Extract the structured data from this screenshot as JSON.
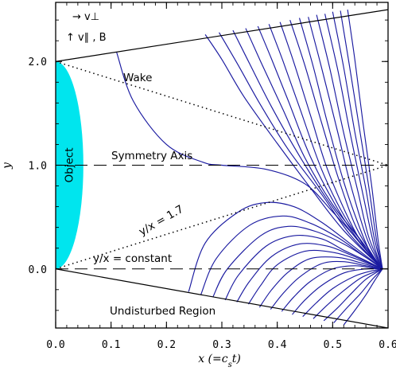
{
  "chart_data": {
    "type": "line",
    "xlabel": "x (=c_s t)",
    "ylabel": "y",
    "xlim": [
      0.0,
      0.6
    ],
    "ylim": [
      -0.57,
      2.57
    ],
    "x_ticks": [
      0.0,
      0.1,
      0.2,
      0.3,
      0.4,
      0.5,
      0.6
    ],
    "x_tick_labels": [
      "0.0",
      "0.1",
      "0.2",
      "0.3",
      "0.4",
      "0.5",
      "0.6"
    ],
    "y_ticks": [
      0.0,
      1.0,
      2.0
    ],
    "y_tick_labels": [
      "0.0",
      "1.0",
      "2.0"
    ],
    "grid": false,
    "legend": {
      "placement": "top-left",
      "line1": "→ v⊥",
      "line2": "↑ v∥ , B"
    },
    "object": {
      "label": "Object",
      "color": "#00e5ee",
      "y_range": [
        0.0,
        2.0
      ],
      "max_width_x": 0.05
    },
    "boundaries": [
      {
        "name": "upper-boundary",
        "style": "solid",
        "from": [
          0.0,
          2.0
        ],
        "to": [
          0.6,
          2.5
        ]
      },
      {
        "name": "lower-boundary",
        "style": "solid",
        "from": [
          0.0,
          0.0
        ],
        "to": [
          0.6,
          -0.57
        ]
      }
    ],
    "reference_lines": [
      {
        "name": "symmetry-axis",
        "style": "dashed",
        "from": [
          0.0,
          1.0
        ],
        "to": [
          0.6,
          1.0
        ]
      },
      {
        "name": "constant-ratio-line",
        "style": "dashed",
        "from": [
          0.0,
          0.0
        ],
        "to": [
          0.6,
          0.0
        ]
      },
      {
        "name": "wake-upper-line",
        "style": "dotted",
        "from": [
          0.0,
          2.0
        ],
        "to": [
          0.6,
          1.0
        ]
      },
      {
        "name": "ratio-1.7-line",
        "style": "dotted",
        "from": [
          0.0,
          0.0
        ],
        "to": [
          0.6,
          1.0
        ]
      }
    ],
    "annotations": [
      {
        "name": "wake-label",
        "text": "Wake"
      },
      {
        "name": "symmetry-axis-label",
        "text": "Symmetry Axis"
      },
      {
        "name": "ratio-1.7-label",
        "text": "y/x = 1.7"
      },
      {
        "name": "constant-ratio-label",
        "text": "y/x = constant"
      },
      {
        "name": "undisturbed-label",
        "text": "Undisturbed Region"
      }
    ],
    "line_color": "#1a1aa0",
    "convergence_point": [
      0.59,
      0.0
    ],
    "field_lines": [
      [
        [
          0.11,
          2.09
        ],
        [
          0.14,
          1.62
        ],
        [
          0.2,
          1.2
        ],
        [
          0.265,
          1.03
        ],
        [
          0.3,
          1.0
        ],
        [
          0.38,
          0.96
        ],
        [
          0.45,
          0.82
        ],
        [
          0.5,
          0.55
        ],
        [
          0.55,
          0.25
        ],
        [
          0.59,
          0.0
        ]
      ],
      [
        [
          0.24,
          -0.22
        ],
        [
          0.27,
          0.25
        ],
        [
          0.33,
          0.55
        ],
        [
          0.38,
          0.64
        ],
        [
          0.43,
          0.6
        ],
        [
          0.48,
          0.45
        ],
        [
          0.53,
          0.25
        ],
        [
          0.59,
          0.0
        ]
      ],
      [
        [
          0.262,
          -0.25
        ],
        [
          0.29,
          0.1
        ],
        [
          0.35,
          0.42
        ],
        [
          0.41,
          0.51
        ],
        [
          0.46,
          0.44
        ],
        [
          0.51,
          0.3
        ],
        [
          0.55,
          0.15
        ],
        [
          0.59,
          0.0
        ]
      ],
      [
        [
          0.284,
          -0.27
        ],
        [
          0.31,
          0.0
        ],
        [
          0.37,
          0.32
        ],
        [
          0.42,
          0.41
        ],
        [
          0.47,
          0.36
        ],
        [
          0.52,
          0.24
        ],
        [
          0.56,
          0.11
        ],
        [
          0.59,
          0.0
        ]
      ],
      [
        [
          0.306,
          -0.3
        ],
        [
          0.33,
          -0.06
        ],
        [
          0.38,
          0.22
        ],
        [
          0.43,
          0.32
        ],
        [
          0.48,
          0.29
        ],
        [
          0.52,
          0.18
        ],
        [
          0.56,
          0.08
        ],
        [
          0.59,
          0.0
        ]
      ],
      [
        [
          0.327,
          -0.32
        ],
        [
          0.35,
          -0.12
        ],
        [
          0.39,
          0.12
        ],
        [
          0.44,
          0.24
        ],
        [
          0.49,
          0.22
        ],
        [
          0.53,
          0.14
        ],
        [
          0.565,
          0.06
        ],
        [
          0.59,
          0.0
        ]
      ],
      [
        [
          0.348,
          -0.34
        ],
        [
          0.37,
          -0.16
        ],
        [
          0.4,
          0.04
        ],
        [
          0.45,
          0.17
        ],
        [
          0.5,
          0.16
        ],
        [
          0.54,
          0.1
        ],
        [
          0.57,
          0.04
        ],
        [
          0.59,
          0.0
        ]
      ],
      [
        [
          0.368,
          -0.37
        ],
        [
          0.39,
          -0.2
        ],
        [
          0.42,
          -0.03
        ],
        [
          0.46,
          0.1
        ],
        [
          0.51,
          0.11
        ],
        [
          0.55,
          0.06
        ],
        [
          0.575,
          0.02
        ],
        [
          0.59,
          0.0
        ]
      ],
      [
        [
          0.388,
          -0.39
        ],
        [
          0.41,
          -0.24
        ],
        [
          0.44,
          -0.08
        ],
        [
          0.48,
          0.05
        ],
        [
          0.52,
          0.07
        ],
        [
          0.56,
          0.03
        ],
        [
          0.59,
          0.0
        ]
      ],
      [
        [
          0.408,
          -0.41
        ],
        [
          0.43,
          -0.27
        ],
        [
          0.46,
          -0.12
        ],
        [
          0.5,
          0.0
        ],
        [
          0.54,
          0.03
        ],
        [
          0.57,
          0.01
        ],
        [
          0.59,
          0.0
        ]
      ],
      [
        [
          0.427,
          -0.44
        ],
        [
          0.45,
          -0.3
        ],
        [
          0.48,
          -0.16
        ],
        [
          0.52,
          -0.04
        ],
        [
          0.56,
          0.0
        ],
        [
          0.59,
          0.0
        ]
      ],
      [
        [
          0.446,
          -0.46
        ],
        [
          0.47,
          -0.33
        ],
        [
          0.5,
          -0.19
        ],
        [
          0.54,
          -0.07
        ],
        [
          0.57,
          -0.02
        ],
        [
          0.59,
          0.0
        ]
      ],
      [
        [
          0.465,
          -0.48
        ],
        [
          0.49,
          -0.35
        ],
        [
          0.52,
          -0.21
        ],
        [
          0.55,
          -0.09
        ],
        [
          0.575,
          -0.03
        ],
        [
          0.59,
          0.0
        ]
      ],
      [
        [
          0.484,
          -0.5
        ],
        [
          0.51,
          -0.37
        ],
        [
          0.535,
          -0.23
        ],
        [
          0.56,
          -0.1
        ],
        [
          0.59,
          0.0
        ]
      ],
      [
        [
          0.502,
          -0.52
        ],
        [
          0.525,
          -0.38
        ],
        [
          0.55,
          -0.24
        ],
        [
          0.57,
          -0.11
        ],
        [
          0.59,
          0.0
        ]
      ],
      [
        [
          0.52,
          -0.54
        ],
        [
          0.54,
          -0.4
        ],
        [
          0.56,
          -0.25
        ],
        [
          0.575,
          -0.12
        ],
        [
          0.59,
          0.0
        ]
      ],
      [
        [
          0.27,
          2.26
        ],
        [
          0.3,
          2.02
        ],
        [
          0.34,
          1.66
        ],
        [
          0.4,
          1.21
        ],
        [
          0.46,
          0.78
        ],
        [
          0.52,
          0.37
        ],
        [
          0.59,
          0.0
        ]
      ],
      [
        [
          0.295,
          2.28
        ],
        [
          0.33,
          1.96
        ],
        [
          0.37,
          1.58
        ],
        [
          0.42,
          1.15
        ],
        [
          0.48,
          0.72
        ],
        [
          0.53,
          0.34
        ],
        [
          0.59,
          0.0
        ]
      ],
      [
        [
          0.32,
          2.3
        ],
        [
          0.35,
          1.98
        ],
        [
          0.39,
          1.56
        ],
        [
          0.44,
          1.09
        ],
        [
          0.49,
          0.67
        ],
        [
          0.54,
          0.31
        ],
        [
          0.59,
          0.0
        ]
      ],
      [
        [
          0.343,
          2.32
        ],
        [
          0.37,
          2.0
        ],
        [
          0.41,
          1.54
        ],
        [
          0.45,
          1.07
        ],
        [
          0.5,
          0.62
        ],
        [
          0.55,
          0.28
        ],
        [
          0.59,
          0.0
        ]
      ],
      [
        [
          0.365,
          2.34
        ],
        [
          0.39,
          2.02
        ],
        [
          0.42,
          1.62
        ],
        [
          0.46,
          1.08
        ],
        [
          0.51,
          0.57
        ],
        [
          0.55,
          0.25
        ],
        [
          0.59,
          0.0
        ]
      ],
      [
        [
          0.385,
          2.36
        ],
        [
          0.41,
          2.01
        ],
        [
          0.44,
          1.56
        ],
        [
          0.48,
          0.96
        ],
        [
          0.52,
          0.52
        ],
        [
          0.56,
          0.21
        ],
        [
          0.59,
          0.0
        ]
      ],
      [
        [
          0.405,
          2.38
        ],
        [
          0.43,
          1.99
        ],
        [
          0.46,
          1.48
        ],
        [
          0.49,
          0.97
        ],
        [
          0.53,
          0.47
        ],
        [
          0.56,
          0.19
        ],
        [
          0.59,
          0.0
        ]
      ],
      [
        [
          0.423,
          2.4
        ],
        [
          0.45,
          1.96
        ],
        [
          0.48,
          1.41
        ],
        [
          0.51,
          0.88
        ],
        [
          0.54,
          0.43
        ],
        [
          0.57,
          0.15
        ],
        [
          0.59,
          0.0
        ]
      ],
      [
        [
          0.44,
          2.42
        ],
        [
          0.465,
          1.95
        ],
        [
          0.49,
          1.42
        ],
        [
          0.52,
          0.84
        ],
        [
          0.55,
          0.38
        ],
        [
          0.57,
          0.14
        ],
        [
          0.59,
          0.0
        ]
      ],
      [
        [
          0.456,
          2.43
        ],
        [
          0.48,
          1.94
        ],
        [
          0.51,
          1.3
        ],
        [
          0.53,
          0.86
        ],
        [
          0.56,
          0.32
        ],
        [
          0.58,
          0.09
        ],
        [
          0.59,
          0.0
        ]
      ],
      [
        [
          0.471,
          2.45
        ],
        [
          0.495,
          1.93
        ],
        [
          0.52,
          1.31
        ],
        [
          0.545,
          0.76
        ],
        [
          0.565,
          0.31
        ],
        [
          0.59,
          0.0
        ]
      ],
      [
        [
          0.486,
          2.46
        ],
        [
          0.51,
          1.9
        ],
        [
          0.53,
          1.35
        ],
        [
          0.555,
          0.71
        ],
        [
          0.575,
          0.22
        ],
        [
          0.59,
          0.0
        ]
      ],
      [
        [
          0.5,
          2.48
        ],
        [
          0.52,
          1.94
        ],
        [
          0.54,
          1.32
        ],
        [
          0.56,
          0.77
        ],
        [
          0.575,
          0.3
        ],
        [
          0.59,
          0.0
        ]
      ],
      [
        [
          0.514,
          2.49
        ],
        [
          0.53,
          1.97
        ],
        [
          0.55,
          1.3
        ],
        [
          0.565,
          0.8
        ],
        [
          0.58,
          0.25
        ],
        [
          0.59,
          0.0
        ]
      ],
      [
        [
          0.527,
          2.5
        ],
        [
          0.54,
          2.02
        ],
        [
          0.555,
          1.4
        ],
        [
          0.57,
          0.82
        ],
        [
          0.582,
          0.28
        ],
        [
          0.59,
          0.0
        ]
      ]
    ]
  }
}
